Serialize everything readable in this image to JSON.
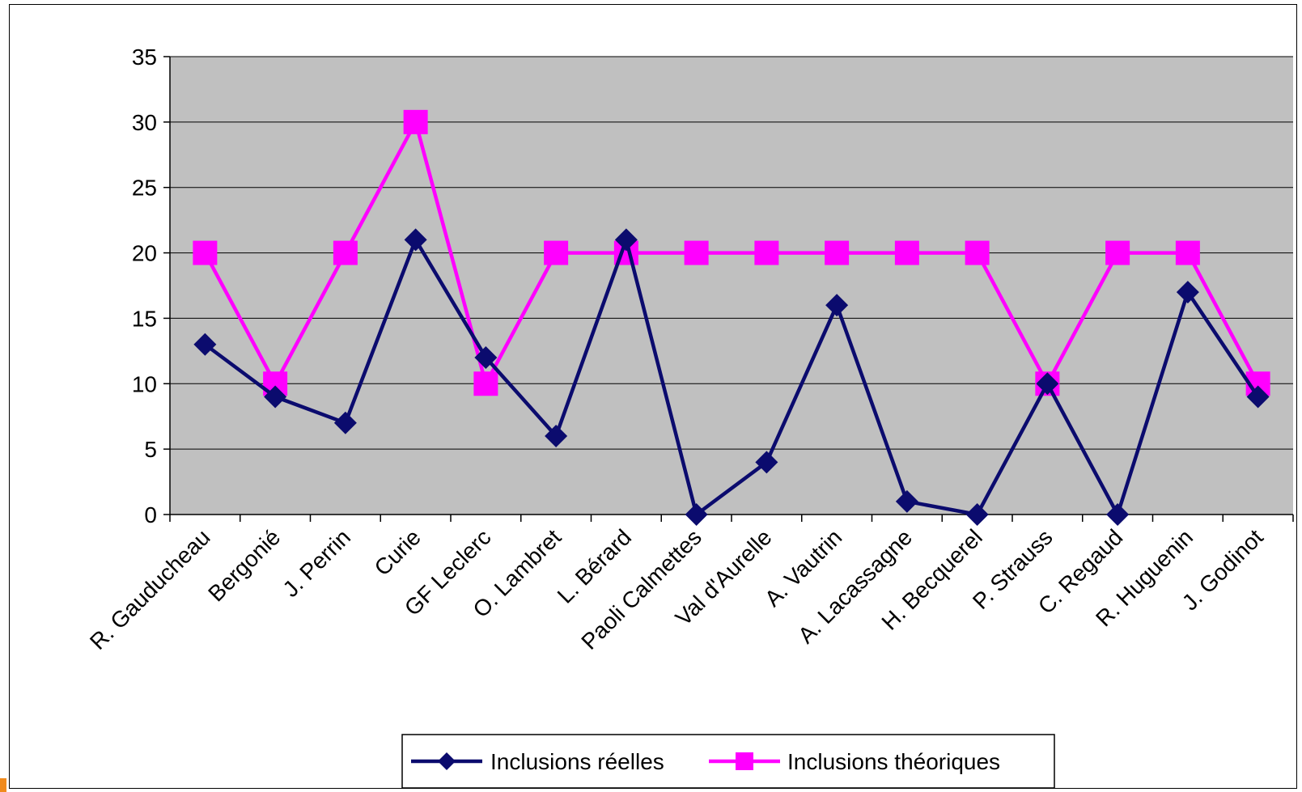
{
  "chart_data": {
    "type": "line",
    "categories": [
      "R. Gauducheau",
      "Bergonié",
      "J. Perrin",
      "Curie",
      "GF Leclerc",
      "O. Lambret",
      "L. Bérard",
      "Paoli Calmettes",
      "Val d'Aurelle",
      "A. Vautrin",
      "A. Lacassagne",
      "H. Becquerel",
      "P. Strauss",
      "C. Regaud",
      "R. Huguenin",
      "J. Godinot"
    ],
    "series": [
      {
        "name": "Inclusions réelles",
        "values": [
          13,
          9,
          7,
          21,
          12,
          6,
          21,
          0,
          4,
          16,
          1,
          0,
          10,
          0,
          17,
          9
        ],
        "color": "#0b0b6e",
        "marker": "diamond"
      },
      {
        "name": "Inclusions théoriques",
        "values": [
          20,
          10,
          20,
          30,
          10,
          20,
          20,
          20,
          20,
          20,
          20,
          20,
          10,
          20,
          20,
          10
        ],
        "color": "#ff00ff",
        "marker": "square"
      }
    ],
    "yticks": [
      "0",
      "5",
      "10",
      "15",
      "20",
      "25",
      "30",
      "35"
    ],
    "ylim": [
      0,
      35
    ],
    "grid": true,
    "plot_background": "#c0c0c0",
    "legend_position": "bottom",
    "title": "",
    "xlabel": "",
    "ylabel": ""
  }
}
